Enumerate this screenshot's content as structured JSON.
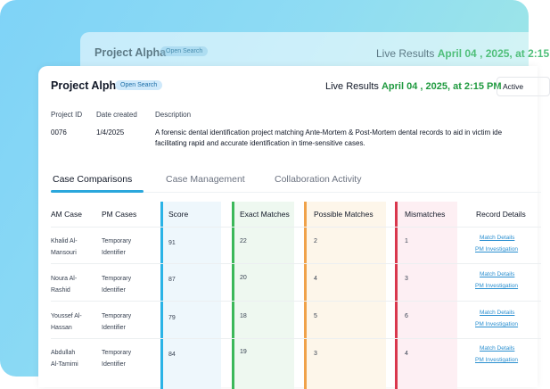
{
  "back_card": {
    "title": "Project Alpha",
    "badge": "Open Search",
    "live_prefix": "Live Results",
    "live_date": "April 04 , 2025, at 2:15"
  },
  "header": {
    "title": "Project Alpha",
    "badge": "Open Search",
    "live_prefix": "Live Results",
    "live_date": "April 04 , 2025, at 2:15 PM",
    "status": "Active"
  },
  "meta": {
    "id_label": "Project ID",
    "date_label": "Date created",
    "desc_label": "Description",
    "id_value": "0076",
    "date_value": "1/4/2025",
    "desc_line1": "A forensic dental identification project matching Ante-Mortem & Post-Mortem dental records to aid in victim ide",
    "desc_line2": "facilitating rapid and accurate identification in time-sensitive cases."
  },
  "tabs": [
    "Case Comparisons",
    "Case Management",
    "Collaboration Activity"
  ],
  "table": {
    "headers": [
      "AM Case",
      "PM Cases",
      "Score",
      "Exact Matches",
      "Possible Matches",
      "Mismatches",
      "Record Details"
    ],
    "rows": [
      {
        "am1": "Khalid Al-",
        "am2": "Mansouri",
        "pm1": "Temporary",
        "pm2": "Identifier",
        "score": "91",
        "exact": "22",
        "possible": "2",
        "mismatch": "1",
        "link1": "Match Details",
        "link2": "PM Investigation"
      },
      {
        "am1": "Noura Al-",
        "am2": "Rashid",
        "pm1": "Temporary",
        "pm2": "Identifier",
        "score": "87",
        "exact": "20",
        "possible": "4",
        "mismatch": "3",
        "link1": "Match Details",
        "link2": "PM Investigation"
      },
      {
        "am1": "Youssef Al-",
        "am2": "Hassan",
        "pm1": "Temporary",
        "pm2": "Identifier",
        "score": "79",
        "exact": "18",
        "possible": "5",
        "mismatch": "6",
        "link1": "Match Details",
        "link2": "PM Investigation"
      },
      {
        "am1": "Abdullah",
        "am2": "Al-Tamimi",
        "pm1": "Temporary",
        "pm2": "Identifier",
        "score": "84",
        "exact": "19",
        "possible": "3",
        "mismatch": "4",
        "link1": "Match Details",
        "link2": "PM Investigation"
      }
    ]
  },
  "colors": {
    "score": "#2bb3e6",
    "exact": "#3cb85a",
    "possible": "#f0a24a",
    "mismatch": "#d9374d",
    "link": "#2a8fd0",
    "live_date": "#1f9a3f"
  }
}
